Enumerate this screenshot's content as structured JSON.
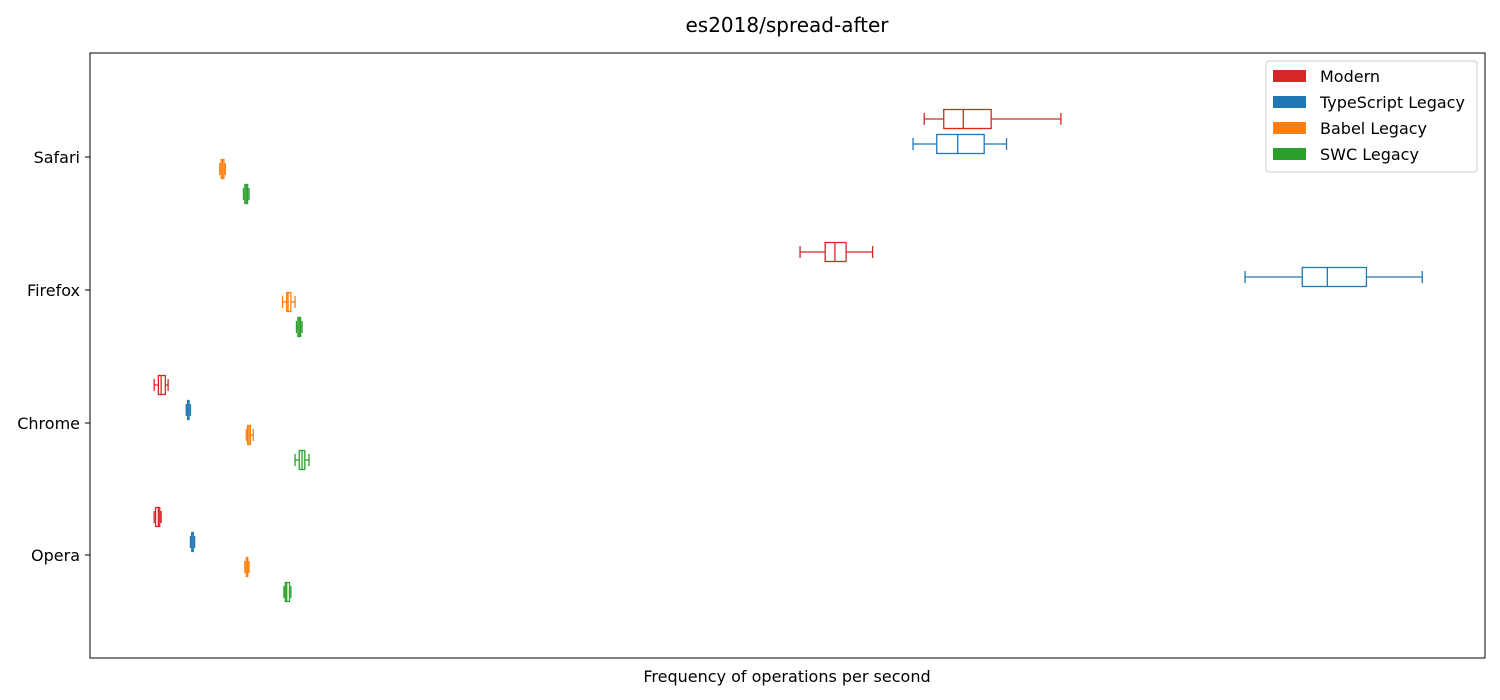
{
  "chart_data": {
    "type": "boxplot-horizontal",
    "title": "es2018/spread-after",
    "xlabel": "Frequency of operations per second",
    "ylabel": "",
    "x_ticks_shown": false,
    "xlim": [
      0,
      1000
    ],
    "grid": false,
    "legend_placement": "top-right",
    "categories": [
      "Safari",
      "Firefox",
      "Chrome",
      "Opera"
    ],
    "series": [
      {
        "name": "Modern",
        "color": "#d62728",
        "boxes": [
          {
            "category": "Safari",
            "whislo": 598,
            "q1": 612,
            "med": 626,
            "q3": 646,
            "whishi": 696
          },
          {
            "category": "Firefox",
            "whislo": 509,
            "q1": 527,
            "med": 534,
            "q3": 542,
            "whishi": 561
          },
          {
            "category": "Chrome",
            "whislo": 46,
            "q1": 49,
            "med": 51,
            "q3": 54,
            "whishi": 56
          },
          {
            "category": "Opera",
            "whislo": 46,
            "q1": 47,
            "med": 49,
            "q3": 50,
            "whishi": 51
          }
        ]
      },
      {
        "name": "TypeScript Legacy",
        "color": "#1f77b4",
        "boxes": [
          {
            "category": "Safari",
            "whislo": 590,
            "q1": 607,
            "med": 622,
            "q3": 641,
            "whishi": 657
          },
          {
            "category": "Firefox",
            "whislo": 828,
            "q1": 869,
            "med": 887,
            "q3": 915,
            "whishi": 955
          },
          {
            "category": "Chrome",
            "whislo": 69,
            "q1": 70,
            "med": 70,
            "q3": 71,
            "whishi": 72
          },
          {
            "category": "Opera",
            "whislo": 72,
            "q1": 73,
            "med": 73,
            "q3": 74,
            "whishi": 75
          }
        ]
      },
      {
        "name": "Babel Legacy",
        "color": "#ff7f0e",
        "boxes": [
          {
            "category": "Safari",
            "whislo": 93,
            "q1": 94,
            "med": 95,
            "q3": 96,
            "whishi": 97
          },
          {
            "category": "Firefox",
            "whislo": 138,
            "q1": 141,
            "med": 142,
            "q3": 144,
            "whishi": 147
          },
          {
            "category": "Chrome",
            "whislo": 112,
            "q1": 113,
            "med": 114,
            "q3": 115,
            "whishi": 117
          },
          {
            "category": "Opera",
            "whislo": 111,
            "q1": 112,
            "med": 113,
            "q3": 113,
            "whishi": 114
          }
        ]
      },
      {
        "name": "SWC Legacy",
        "color": "#2ca02c",
        "boxes": [
          {
            "category": "Safari",
            "whislo": 110,
            "q1": 111,
            "med": 112,
            "q3": 113,
            "whishi": 114
          },
          {
            "category": "Firefox",
            "whislo": 148,
            "q1": 149,
            "med": 150,
            "q3": 151,
            "whishi": 152
          },
          {
            "category": "Chrome",
            "whislo": 147,
            "q1": 150,
            "med": 152,
            "q3": 154,
            "whishi": 157
          },
          {
            "category": "Opera",
            "whislo": 139,
            "q1": 140,
            "med": 141,
            "q3": 143,
            "whishi": 144
          }
        ]
      }
    ]
  }
}
